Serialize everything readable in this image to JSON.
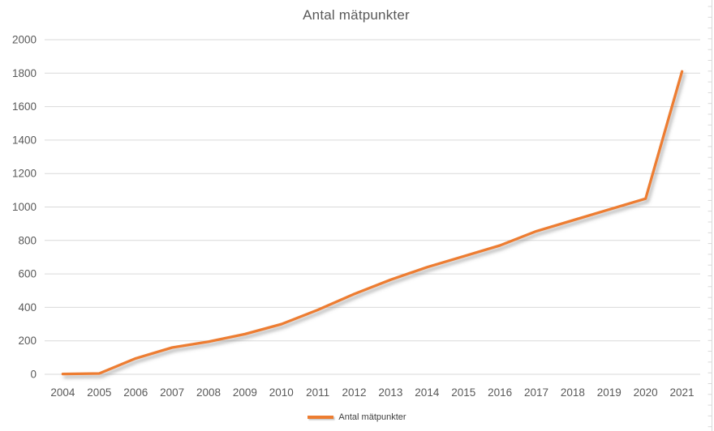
{
  "chart_data": {
    "type": "line",
    "title": "Antal mätpunkter",
    "categories": [
      "2004",
      "2005",
      "2006",
      "2007",
      "2008",
      "2009",
      "2010",
      "2011",
      "2012",
      "2013",
      "2014",
      "2015",
      "2016",
      "2017",
      "2018",
      "2019",
      "2020",
      "2021"
    ],
    "series": [
      {
        "name": "Antal mätpunkter",
        "values": [
          2,
          5,
          95,
          160,
          195,
          240,
          300,
          385,
          480,
          565,
          640,
          705,
          770,
          855,
          920,
          985,
          1050,
          1810
        ]
      }
    ],
    "xlabel": "",
    "ylabel": "",
    "ylim": [
      0,
      2000
    ],
    "ytick_step": 200,
    "yticks": [
      0,
      200,
      400,
      600,
      800,
      1000,
      1200,
      1400,
      1600,
      1800,
      2000
    ],
    "grid": true,
    "legend_position": "bottom",
    "line_has_shadow": true,
    "colors": {
      "line": "#ED7D31",
      "gridline": "#D9D9D9",
      "tick_text": "#595959",
      "title_text": "#595959",
      "background": "#FFFFFF",
      "sheet_edge": "#D9D9D9"
    }
  },
  "legend": {
    "label": "Antal mätpunkter"
  }
}
